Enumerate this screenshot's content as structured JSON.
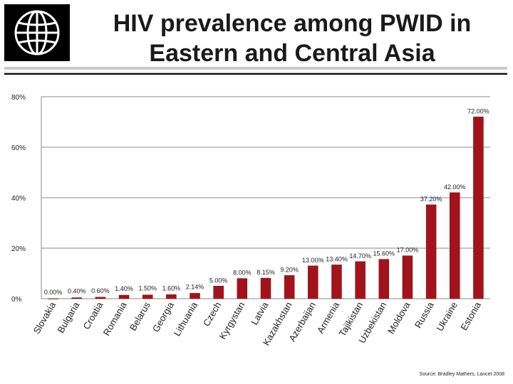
{
  "slide": {
    "title_line1": "HIV prevalence among PWID in",
    "title_line2": "Eastern and Central Asia",
    "source": "Source: Bradley Mathers, Lancet 2008"
  },
  "colors": {
    "bar": "#a3131b",
    "bar_edge": "#7a0d13",
    "grid": "#8a8a8a",
    "text": "#222222"
  },
  "chart_data": {
    "type": "bar",
    "title": "HIV prevalence among PWID in Eastern and Central Asia",
    "xlabel": "",
    "ylabel": "",
    "ylim": [
      0,
      80
    ],
    "yticks": [
      0,
      20,
      40,
      60,
      80
    ],
    "ytick_labels": [
      "0%",
      "20%",
      "40%",
      "60%",
      "80%"
    ],
    "grid": true,
    "categories": [
      "Slovakia",
      "Bulgaria",
      "Croatia",
      "Romania",
      "Belarus",
      "Georgia",
      "Lithuania",
      "Czech",
      "Kyrgystan",
      "Latvia",
      "Kazakhstan",
      "Azerbaijan",
      "Armenia",
      "Tajikistan",
      "Uzbekistan",
      "Moldova",
      "Russia",
      "Ukraine",
      "Estonia"
    ],
    "values": [
      0.0,
      0.4,
      0.6,
      1.4,
      1.5,
      1.6,
      2.14,
      5.0,
      8.0,
      8.15,
      9.2,
      13.0,
      13.4,
      14.7,
      15.6,
      17.0,
      37.2,
      42.0,
      72.0
    ],
    "labels": [
      "0.00%",
      "0.40%",
      "0.60%",
      "1.40%",
      "1.50%",
      "1.60%",
      "2.14%",
      "5.00%",
      "8.00%",
      "8.15%",
      "9.20%",
      "13.00%",
      "13.40%",
      "14.70%",
      "15.60%",
      "17.00%",
      "37.20%",
      "42.00%",
      "72.00%"
    ]
  }
}
